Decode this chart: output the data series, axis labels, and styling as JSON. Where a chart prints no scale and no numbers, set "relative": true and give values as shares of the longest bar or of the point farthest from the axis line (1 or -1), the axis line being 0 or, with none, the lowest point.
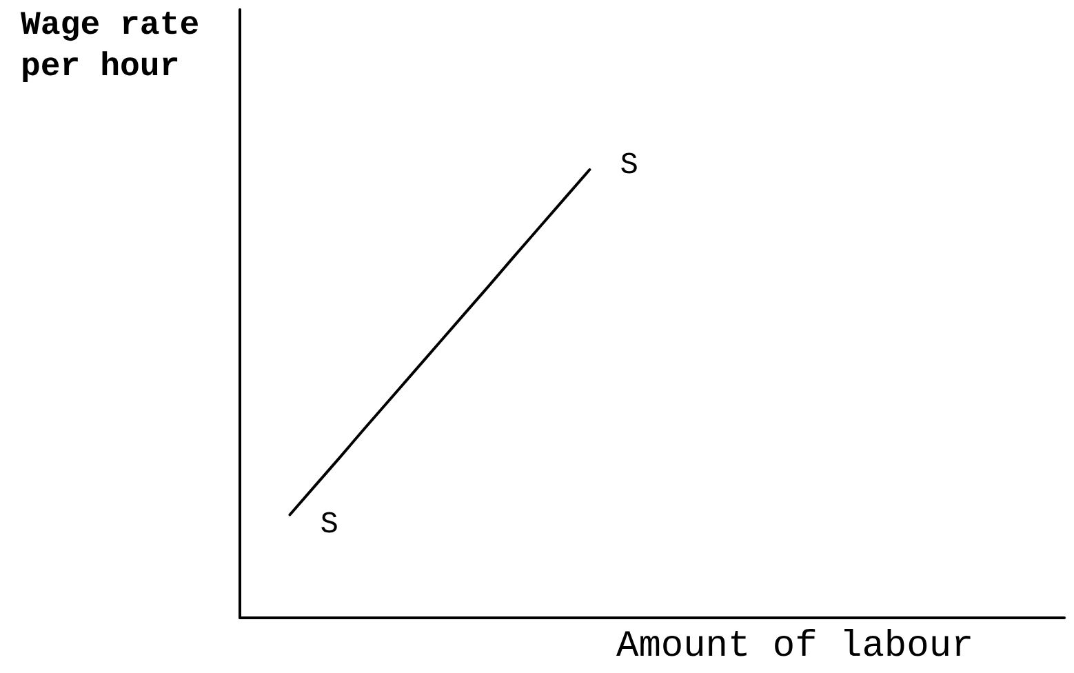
{
  "chart_data": {
    "type": "line",
    "xlabel": "Amount of labour",
    "ylabel": "Wage rate per hour",
    "categories": [
      null,
      null,
      null,
      null,
      null,
      null,
      null,
      null,
      null,
      null,
      null,
      null,
      null,
      null,
      null,
      null,
      null,
      null,
      null,
      null,
      null,
      null,
      null,
      null,
      null,
      null,
      null,
      null,
      null,
      null,
      null,
      null,
      null,
      null
    ],
    "series": [
      {
        "name": "S",
        "color": "#000000",
        "values": [
          null,
          null,
          0.23,
          0.294,
          0.358,
          0.423,
          0.487,
          0.551,
          0.615,
          0.679,
          0.743,
          0.808,
          0.872,
          0.936,
          1,
          null,
          null,
          null,
          null,
          null,
          null,
          null,
          null,
          null,
          null,
          null,
          null,
          null,
          null,
          null,
          null,
          null,
          null,
          null
        ]
      }
    ],
    "relative": true
  }
}
